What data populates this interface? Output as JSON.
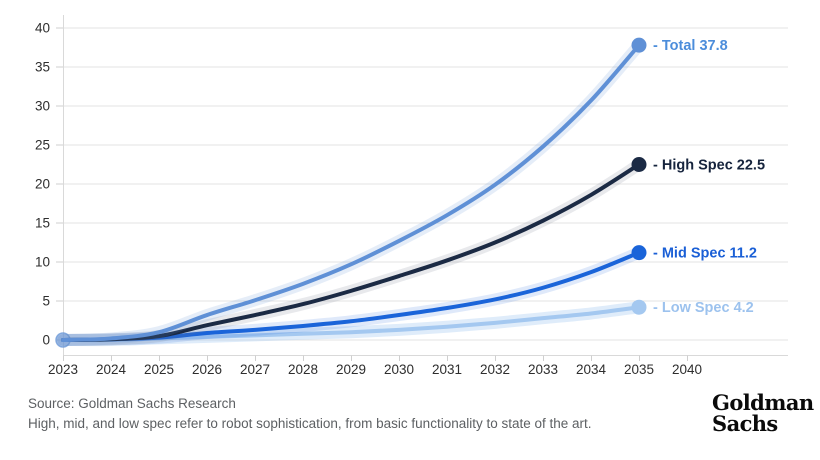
{
  "chart_data": {
    "type": "line",
    "title": "",
    "xlabel": "",
    "ylabel": "",
    "x": [
      2023,
      2024,
      2025,
      2026,
      2027,
      2028,
      2029,
      2030,
      2031,
      2032,
      2033,
      2034,
      2035
    ],
    "x_axis_tick_labels": [
      "2023",
      "2024",
      "2025",
      "2026",
      "2027",
      "2028",
      "2029",
      "2030",
      "2031",
      "2032",
      "2033",
      "2034",
      "2035",
      "2040"
    ],
    "y_ticks": [
      0,
      5,
      10,
      15,
      20,
      25,
      30,
      35,
      40
    ],
    "ylim": [
      0,
      40
    ],
    "grid": "horizontal",
    "legend_position": "right-of-line-ends",
    "series": [
      {
        "name": "Total",
        "end_label": "- Total 37.8",
        "end_value": 37.8,
        "color": "#5f90d6",
        "label_color": "#4c8ddb",
        "halo": "rgba(95,144,214,0.16)",
        "values": [
          0,
          0.2,
          1.0,
          3.2,
          5.1,
          7.2,
          9.7,
          12.7,
          16.0,
          19.9,
          24.8,
          30.7,
          37.8
        ]
      },
      {
        "name": "High Spec",
        "end_label": "- High Spec 22.5",
        "end_value": 22.5,
        "color": "#1b2a44",
        "label_color": "#16243d",
        "halo": "rgba(110,118,135,0.16)",
        "values": [
          0,
          0.1,
          0.5,
          1.9,
          3.2,
          4.6,
          6.3,
          8.2,
          10.2,
          12.5,
          15.3,
          18.6,
          22.5
        ]
      },
      {
        "name": "Mid Spec",
        "end_label": "- Mid Spec 11.2",
        "end_value": 11.2,
        "color": "#1a64d9",
        "label_color": "#1a5fd6",
        "halo": "rgba(26,100,217,0.14)",
        "values": [
          0,
          0.1,
          0.3,
          0.9,
          1.3,
          1.8,
          2.4,
          3.2,
          4.1,
          5.2,
          6.7,
          8.7,
          11.2
        ]
      },
      {
        "name": "Low Spec",
        "end_label": "- Low Spec 4.2",
        "end_value": 4.2,
        "color": "#a4c8f0",
        "label_color": "#9cc2ee",
        "halo": "rgba(164,200,240,0.35)",
        "values": [
          0,
          0.0,
          0.2,
          0.4,
          0.6,
          0.8,
          1.0,
          1.3,
          1.7,
          2.2,
          2.8,
          3.4,
          4.2
        ]
      }
    ],
    "start_marker": {
      "x": 2023,
      "value": 0
    }
  },
  "footer": {
    "source": "Source: Goldman Sachs Research",
    "note": "High, mid, and low spec refer to robot sophistication, from basic functionality to state of the art."
  },
  "logo": {
    "line1": "Goldman",
    "line2": "Sachs"
  }
}
